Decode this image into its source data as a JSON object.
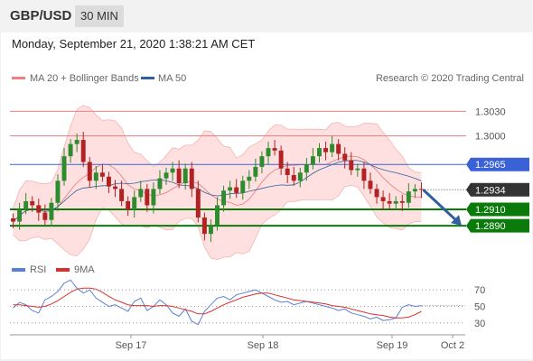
{
  "header": {
    "pair": "GBP/USD",
    "timeframe": "30 MIN"
  },
  "timestamp": "Monday, September 21, 2020 1:38:21 AM CET",
  "legend": {
    "bollinger_label": "MA 20 + Bollinger Bands",
    "ma50_label": "MA 50",
    "copyright": "Research © 2020 Trading Central"
  },
  "rsi_legend": {
    "rsi_label": "RSI",
    "ma_label": "9MA"
  },
  "colors": {
    "resistance": "#f08080",
    "pivot": "#3a62d6",
    "support": "#0a7a0a",
    "current": "#333333",
    "candle_up": "#2e8b2e",
    "candle_down": "#b22222",
    "bollinger_fill": "#fde0df",
    "rsi": "#5a7fd6",
    "rsi_ma": "#d9302c",
    "arrow": "#2f5f9e"
  },
  "chart_data": [
    {
      "type": "candlestick",
      "title": "GBP/USD 30 MIN",
      "x_ticks": [
        "Sep 17",
        "Sep 18",
        "Sep 19",
        "Oct 2"
      ],
      "ylim": [
        1.2868,
        1.3058
      ],
      "levels": [
        {
          "value": "1.3030",
          "role": "resistance"
        },
        {
          "value": "1.3000",
          "role": "resistance"
        },
        {
          "value": "1.2965",
          "role": "pivot"
        },
        {
          "value": "1.2934",
          "role": "current"
        },
        {
          "value": "1.2910",
          "role": "support"
        },
        {
          "value": "1.2890",
          "role": "support"
        }
      ],
      "series": [
        {
          "name": "MA 20 + Bollinger Bands",
          "kind": "band"
        },
        {
          "name": "MA 50",
          "kind": "line"
        }
      ],
      "close_path": [
        1.2895,
        1.291,
        1.292,
        1.2915,
        1.2906,
        1.2897,
        1.2918,
        1.2945,
        1.2975,
        1.299,
        1.2995,
        1.2968,
        1.2945,
        1.2955,
        1.295,
        1.2938,
        1.2935,
        1.292,
        1.291,
        1.2925,
        1.2935,
        1.2915,
        1.2935,
        1.2948,
        1.2955,
        1.296,
        1.2942,
        1.296,
        1.2935,
        1.29,
        1.288,
        1.289,
        1.2915,
        1.2933,
        1.2937,
        1.293,
        1.2945,
        1.295,
        1.2962,
        1.2975,
        1.2985,
        1.2982,
        1.296,
        1.2952,
        1.2945,
        1.2955,
        1.2965,
        1.2975,
        1.2985,
        1.298,
        1.299,
        1.2978,
        1.297,
        1.2958,
        1.296,
        1.2945,
        1.2935,
        1.2925,
        1.292,
        1.2917,
        1.292,
        1.2918,
        1.2932,
        1.2935,
        1.2934
      ],
      "projection": {
        "from": 1.2934,
        "to": 1.289
      }
    },
    {
      "type": "line",
      "title": "RSI",
      "ylim": [
        20,
        80
      ],
      "y_ticks": [
        "70",
        "50",
        "30"
      ],
      "series": [
        {
          "name": "RSI",
          "values": [
            48,
            55,
            52,
            45,
            42,
            58,
            62,
            68,
            78,
            82,
            72,
            66,
            70,
            60,
            55,
            50,
            52,
            48,
            44,
            56,
            60,
            45,
            50,
            58,
            52,
            42,
            38,
            47,
            32,
            28,
            44,
            52,
            60,
            62,
            58,
            64,
            66,
            68,
            70,
            66,
            62,
            58,
            55,
            56,
            52,
            54,
            56,
            54,
            52,
            50,
            48,
            45,
            47,
            42,
            40,
            38,
            35,
            37,
            33,
            34,
            36,
            49,
            52,
            50,
            51
          ]
        },
        {
          "name": "9MA",
          "values": [
            52,
            52,
            51,
            50,
            49,
            50,
            53,
            57,
            62,
            67,
            71,
            72,
            72,
            71,
            67,
            62,
            58,
            55,
            52,
            51,
            51,
            51,
            50,
            51,
            51,
            50,
            48,
            46,
            44,
            41,
            41,
            44,
            48,
            52,
            55,
            58,
            61,
            63,
            65,
            66,
            66,
            64,
            62,
            60,
            58,
            57,
            56,
            55,
            54,
            53,
            51,
            50,
            49,
            47,
            45,
            43,
            41,
            40,
            39,
            37,
            36,
            36,
            37,
            40,
            44
          ]
        }
      ]
    }
  ]
}
